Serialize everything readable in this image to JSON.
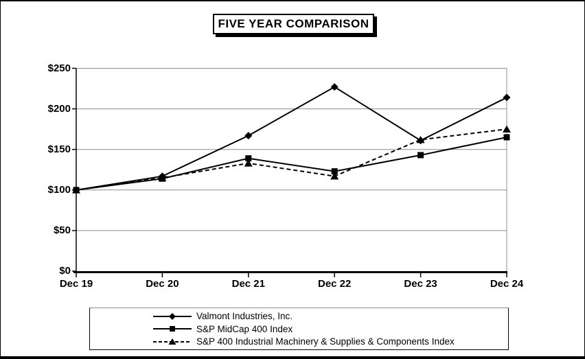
{
  "page": {
    "title_label": "FIVE YEAR COMPARISON"
  },
  "chart_data": {
    "type": "line",
    "title": "FIVE YEAR COMPARISON",
    "categories": [
      "Dec 19",
      "Dec 20",
      "Dec 21",
      "Dec 22",
      "Dec 23",
      "Dec 24"
    ],
    "y_tick_labels": [
      "$0",
      "$50",
      "$100",
      "$150",
      "$200",
      "$250"
    ],
    "y_tick_values": [
      0,
      50,
      100,
      150,
      200,
      250
    ],
    "ylim": [
      0,
      250
    ],
    "grid": "horizontal",
    "legend_position": "bottom",
    "colors": {
      "series": "#000000",
      "grid": "#8c8c8c",
      "axis": "#000000",
      "background": "#ffffff"
    },
    "series": [
      {
        "name": "Valmont Industries, Inc.",
        "marker": "diamond",
        "line_style": "solid",
        "values": [
          100,
          117,
          167,
          227,
          161,
          214
        ]
      },
      {
        "name": "S&P MidCap 400 Index",
        "marker": "square",
        "line_style": "solid",
        "values": [
          100,
          114,
          139,
          123,
          143,
          165
        ]
      },
      {
        "name": "S&P 400 Industrial Machinery & Supplies & Components Index",
        "marker": "triangle",
        "line_style": "dashed",
        "values": [
          100,
          115,
          133,
          117,
          162,
          175
        ]
      }
    ]
  }
}
